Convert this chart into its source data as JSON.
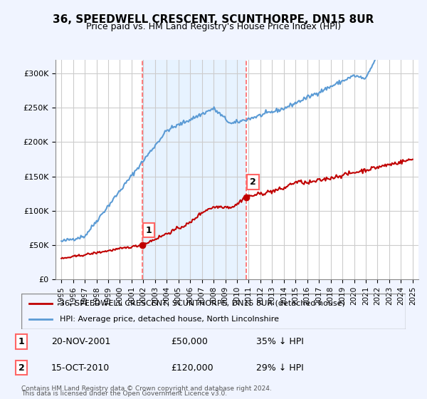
{
  "title": "36, SPEEDWELL CRESCENT, SCUNTHORPE, DN15 8UR",
  "subtitle": "Price paid vs. HM Land Registry's House Price Index (HPI)",
  "legend_line1": "36, SPEEDWELL CRESCENT, SCUNTHORPE, DN15 8UR (detached house)",
  "legend_line2": "HPI: Average price, detached house, North Lincolnshire",
  "footer1": "Contains HM Land Registry data © Crown copyright and database right 2024.",
  "footer2": "This data is licensed under the Open Government Licence v3.0.",
  "sale1_label": "1",
  "sale1_date": "20-NOV-2001",
  "sale1_price": "£50,000",
  "sale1_hpi": "35% ↓ HPI",
  "sale2_label": "2",
  "sale2_date": "15-OCT-2010",
  "sale2_price": "£120,000",
  "sale2_hpi": "29% ↓ HPI",
  "hpi_color": "#5b9bd5",
  "price_color": "#c00000",
  "vline_color": "#ff6666",
  "shade_color": "#ddeeff",
  "background_color": "#f0f4ff",
  "plot_bg_color": "#ffffff",
  "ylim": [
    0,
    320000
  ],
  "yticks": [
    0,
    50000,
    100000,
    150000,
    200000,
    250000,
    300000
  ],
  "ylabel_format": "£{0}K",
  "sale1_year": 2001.9,
  "sale2_year": 2010.8,
  "sale1_price_val": 50000,
  "sale2_price_val": 120000
}
